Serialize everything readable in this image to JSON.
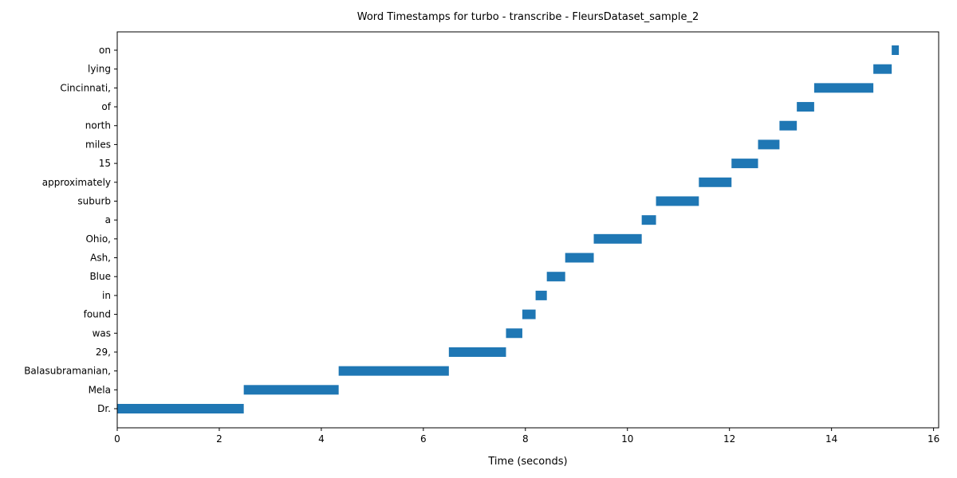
{
  "chart_data": {
    "type": "bar",
    "orientation": "horizontal",
    "title": "Word Timestamps for turbo - transcribe - FleursDataset_sample_2",
    "xlabel": "Time (seconds)",
    "ylabel": "",
    "xlim": [
      0,
      16.1
    ],
    "xticks": [
      0,
      2,
      4,
      6,
      8,
      10,
      12,
      14,
      16
    ],
    "grid": false,
    "bar_color": "#1f77b4",
    "words": [
      {
        "label": " Dr.",
        "start": 0.0,
        "end": 2.48
      },
      {
        "label": " Mela",
        "start": 2.48,
        "end": 4.34
      },
      {
        "label": " Balasubramanian,",
        "start": 4.34,
        "end": 6.5
      },
      {
        "label": " 29,",
        "start": 6.5,
        "end": 7.62
      },
      {
        "label": " was",
        "start": 7.62,
        "end": 7.94
      },
      {
        "label": " found",
        "start": 7.94,
        "end": 8.2
      },
      {
        "label": " in",
        "start": 8.2,
        "end": 8.42
      },
      {
        "label": " Blue",
        "start": 8.42,
        "end": 8.78
      },
      {
        "label": " Ash,",
        "start": 8.78,
        "end": 9.34
      },
      {
        "label": " Ohio,",
        "start": 9.34,
        "end": 10.28
      },
      {
        "label": " a",
        "start": 10.28,
        "end": 10.56
      },
      {
        "label": " suburb",
        "start": 10.56,
        "end": 11.4
      },
      {
        "label": " approximately",
        "start": 11.4,
        "end": 12.04
      },
      {
        "label": " 15",
        "start": 12.04,
        "end": 12.56
      },
      {
        "label": " miles",
        "start": 12.56,
        "end": 12.98
      },
      {
        "label": " north",
        "start": 12.98,
        "end": 13.32
      },
      {
        "label": " of",
        "start": 13.32,
        "end": 13.66
      },
      {
        "label": " Cincinnati,",
        "start": 13.66,
        "end": 14.82
      },
      {
        "label": " lying",
        "start": 14.82,
        "end": 15.18
      },
      {
        "label": " on",
        "start": 15.18,
        "end": 15.32
      }
    ]
  }
}
